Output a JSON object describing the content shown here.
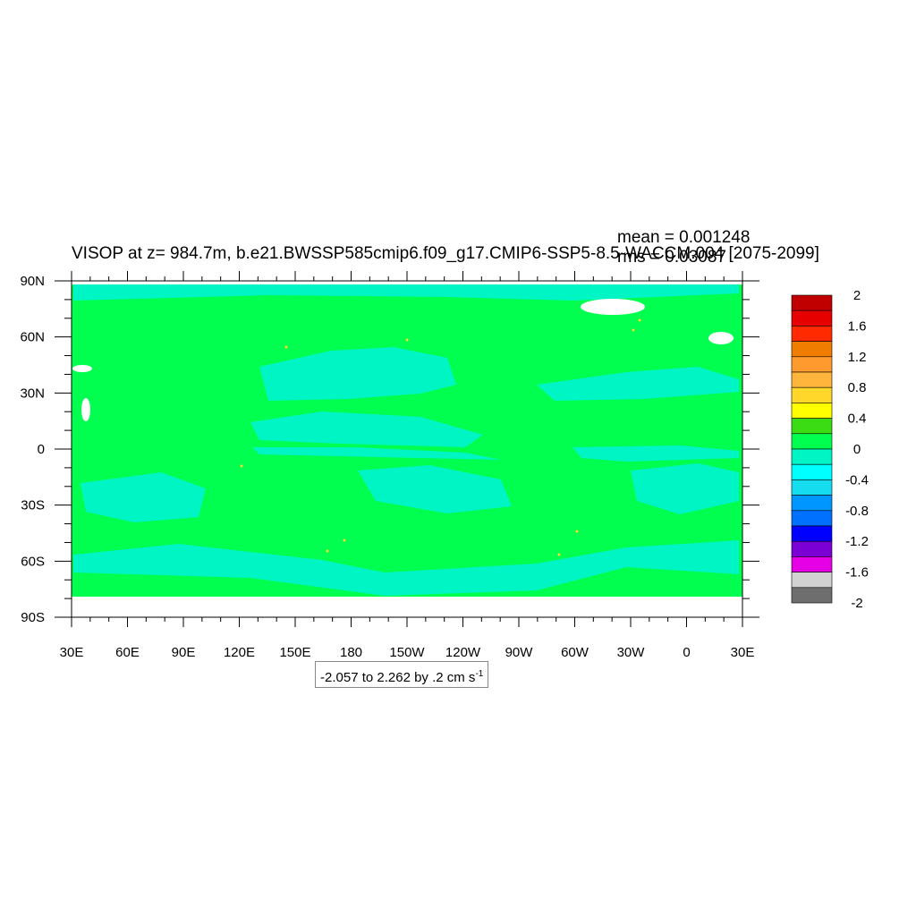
{
  "title": "VISOP at z= 984.7m, b.e21.BWSSP585cmip6.f09_g17.CMIP6-SSP5-8.5-WACCM.004 [2075-2099]",
  "stats": {
    "mean": "mean = 0.001248",
    "rms": "rms = 0.03087"
  },
  "range_note": {
    "text": "-2.057 to 2.262 by .2 cm s",
    "superscript": "-1"
  },
  "chart_data": {
    "type": "heatmap",
    "title": "VISOP at z= 984.7m, b.e21.BWSSP585cmip6.f09_g17.CMIP6-SSP5-8.5-WACCM.004 [2075-2099]",
    "x_ticks": [
      "30E",
      "60E",
      "90E",
      "120E",
      "150E",
      "180",
      "150W",
      "120W",
      "90W",
      "60W",
      "30W",
      "0",
      "30E"
    ],
    "y_ticks": [
      "90N",
      "60N",
      "30N",
      "0",
      "30S",
      "60S",
      "90S"
    ],
    "xlim": [
      30,
      390
    ],
    "ylim": [
      -90,
      90
    ],
    "colorbar": {
      "labels": [
        "2",
        "1.6",
        "1.2",
        "0.8",
        "0.4",
        "0",
        "-0.4",
        "-0.8",
        "-1.2",
        "-1.6",
        "-2"
      ],
      "colors": [
        "#c00000",
        "#e60000",
        "#ff2a00",
        "#f07d00",
        "#ff9a2e",
        "#ffb43c",
        "#ffd72a",
        "#ffff00",
        "#3cdc14",
        "#00ff4f",
        "#00f5c4",
        "#00ffff",
        "#16dcf0",
        "#0096ff",
        "#0070ff",
        "#0000ff",
        "#7a00d6",
        "#e600e6",
        "#d2d2d2",
        "#6e6e6e"
      ]
    },
    "field_colors": {
      "background": "#00ff4f",
      "band": "#00f5c4",
      "missing": "#ffffff",
      "spot": "#ffd72a"
    }
  }
}
